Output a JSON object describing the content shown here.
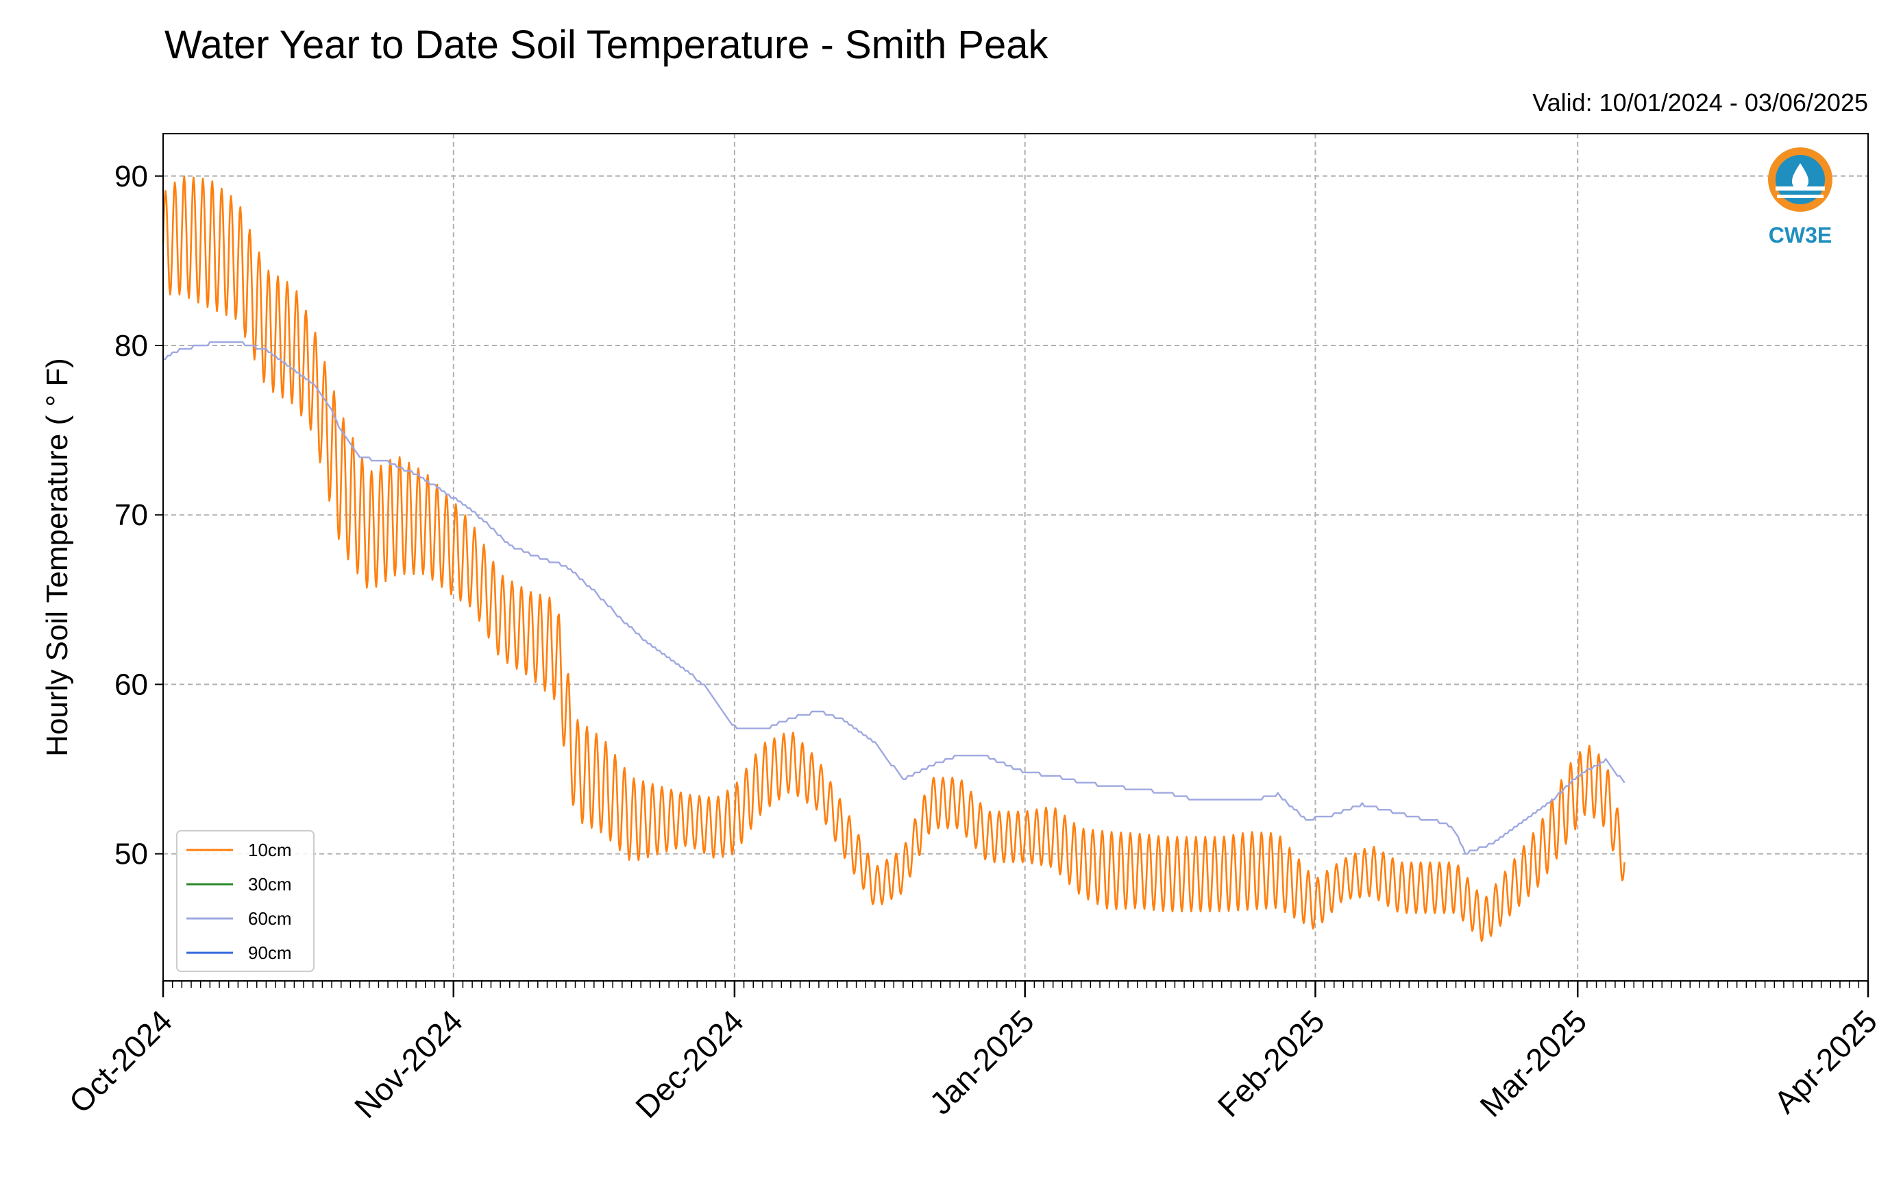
{
  "chart_data": {
    "type": "line",
    "title": "Water Year to Date Soil Temperature - Smith Peak",
    "subtitle": "Valid: 10/01/2024 - 03/06/2025",
    "xlabel": "",
    "ylabel": "Hourly Soil Temperature ( ° F)",
    "xlim": [
      "2024-10-01",
      "2025-04-01"
    ],
    "ylim": [
      42.5,
      92.5
    ],
    "x_tick_labels": [
      "Oct-2024",
      "Nov-2024",
      "Dec-2024",
      "Jan-2025",
      "Feb-2025",
      "Mar-2025",
      "Apr-2025"
    ],
    "x_ticks": [
      "2024-10-01",
      "2024-11-01",
      "2024-12-01",
      "2025-01-01",
      "2025-02-01",
      "2025-03-01",
      "2025-04-01"
    ],
    "y_ticks": [
      50,
      60,
      70,
      80,
      90
    ],
    "grid": true,
    "legend_position": "bottom-left",
    "series": [
      {
        "name": "10cm",
        "color": "#ff7f0e",
        "style": "diurnal",
        "x": [
          "2024-10-01",
          "2024-10-03",
          "2024-10-06",
          "2024-10-09",
          "2024-10-12",
          "2024-10-15",
          "2024-10-17",
          "2024-10-20",
          "2024-10-23",
          "2024-10-26",
          "2024-10-29",
          "2024-11-01",
          "2024-11-03",
          "2024-11-06",
          "2024-11-09",
          "2024-11-12",
          "2024-11-14",
          "2024-11-17",
          "2024-11-20",
          "2024-11-23",
          "2024-11-26",
          "2024-11-29",
          "2024-12-01",
          "2024-12-04",
          "2024-12-07",
          "2024-12-10",
          "2024-12-13",
          "2024-12-16",
          "2024-12-19",
          "2024-12-22",
          "2024-12-25",
          "2024-12-28",
          "2025-01-01",
          "2025-01-04",
          "2025-01-07",
          "2025-01-10",
          "2025-01-13",
          "2025-01-16",
          "2025-01-19",
          "2025-01-22",
          "2025-01-25",
          "2025-01-28",
          "2025-02-01",
          "2025-02-04",
          "2025-02-07",
          "2025-02-10",
          "2025-02-13",
          "2025-02-16",
          "2025-02-19",
          "2025-02-22",
          "2025-02-25",
          "2025-02-28",
          "2025-03-02",
          "2025-03-04",
          "2025-03-06"
        ],
        "values": [
          86.0,
          86.5,
          86.0,
          85.0,
          81.0,
          80.0,
          78.0,
          72.0,
          69.0,
          70.0,
          69.5,
          68.0,
          67.0,
          64.0,
          63.0,
          62.0,
          55.0,
          54.0,
          52.0,
          52.0,
          52.0,
          51.5,
          52.0,
          54.5,
          55.5,
          54.0,
          51.0,
          48.0,
          49.0,
          53.0,
          53.0,
          51.0,
          51.0,
          51.0,
          49.5,
          49.0,
          49.0,
          48.8,
          48.8,
          48.8,
          49.0,
          49.0,
          47.0,
          48.5,
          49.0,
          48.0,
          48.0,
          48.0,
          46.0,
          48.0,
          50.0,
          53.0,
          54.5,
          53.5,
          49.5
        ],
        "amplitude": [
          3.0,
          3.5,
          3.8,
          3.5,
          3.5,
          3.5,
          3.2,
          4.0,
          3.5,
          3.5,
          3.0,
          2.8,
          2.5,
          2.5,
          2.5,
          3.0,
          3.0,
          2.8,
          2.5,
          2.0,
          1.5,
          1.8,
          2.0,
          2.0,
          1.8,
          1.5,
          1.5,
          1.2,
          1.3,
          1.5,
          1.5,
          1.5,
          1.5,
          1.8,
          2.0,
          2.3,
          2.2,
          2.2,
          2.2,
          2.2,
          2.3,
          2.2,
          1.5,
          1.2,
          1.5,
          1.5,
          1.5,
          1.5,
          1.3,
          1.5,
          1.8,
          2.2,
          2.0,
          2.0,
          1.5
        ]
      },
      {
        "name": "30cm",
        "color": "#2a8a2a",
        "x": [],
        "values": []
      },
      {
        "name": "60cm",
        "color": "#9fa8e0",
        "style": "step",
        "x": [
          "2024-10-01",
          "2024-10-03",
          "2024-10-06",
          "2024-10-09",
          "2024-10-12",
          "2024-10-15",
          "2024-10-17",
          "2024-10-19",
          "2024-10-20",
          "2024-10-22",
          "2024-10-25",
          "2024-10-28",
          "2024-11-01",
          "2024-11-04",
          "2024-11-07",
          "2024-11-10",
          "2024-11-13",
          "2024-11-16",
          "2024-11-19",
          "2024-11-22",
          "2024-11-25",
          "2024-11-28",
          "2024-12-01",
          "2024-12-04",
          "2024-12-07",
          "2024-12-10",
          "2024-12-13",
          "2024-12-16",
          "2024-12-19",
          "2024-12-22",
          "2024-12-25",
          "2024-12-28",
          "2025-01-01",
          "2025-01-04",
          "2025-01-07",
          "2025-01-10",
          "2025-01-13",
          "2025-01-16",
          "2025-01-19",
          "2025-01-22",
          "2025-01-25",
          "2025-01-28",
          "2025-01-31",
          "2025-02-03",
          "2025-02-06",
          "2025-02-09",
          "2025-02-12",
          "2025-02-15",
          "2025-02-16",
          "2025-02-17",
          "2025-02-20",
          "2025-02-23",
          "2025-02-26",
          "2025-03-01",
          "2025-03-04",
          "2025-03-06"
        ],
        "values": [
          79.2,
          79.8,
          80.1,
          80.2,
          79.7,
          78.5,
          77.8,
          76.2,
          74.9,
          73.4,
          73.1,
          72.4,
          71.0,
          69.8,
          68.2,
          67.5,
          67.0,
          65.5,
          63.8,
          62.3,
          61.2,
          59.8,
          57.5,
          57.3,
          58.0,
          58.4,
          57.8,
          56.5,
          54.4,
          55.2,
          55.8,
          55.7,
          54.8,
          54.6,
          54.2,
          54.0,
          53.8,
          53.6,
          53.2,
          53.1,
          53.1,
          53.5,
          52.0,
          52.3,
          52.9,
          52.5,
          52.1,
          51.8,
          51.2,
          50.0,
          50.6,
          51.8,
          53.0,
          54.6,
          55.5,
          54.2
        ]
      },
      {
        "name": "90cm",
        "color": "#3366dd",
        "x": [],
        "values": []
      }
    ]
  },
  "logo": {
    "text": "CW3E",
    "ring_color": "#f39021",
    "text_color": "#1f8fbf"
  }
}
